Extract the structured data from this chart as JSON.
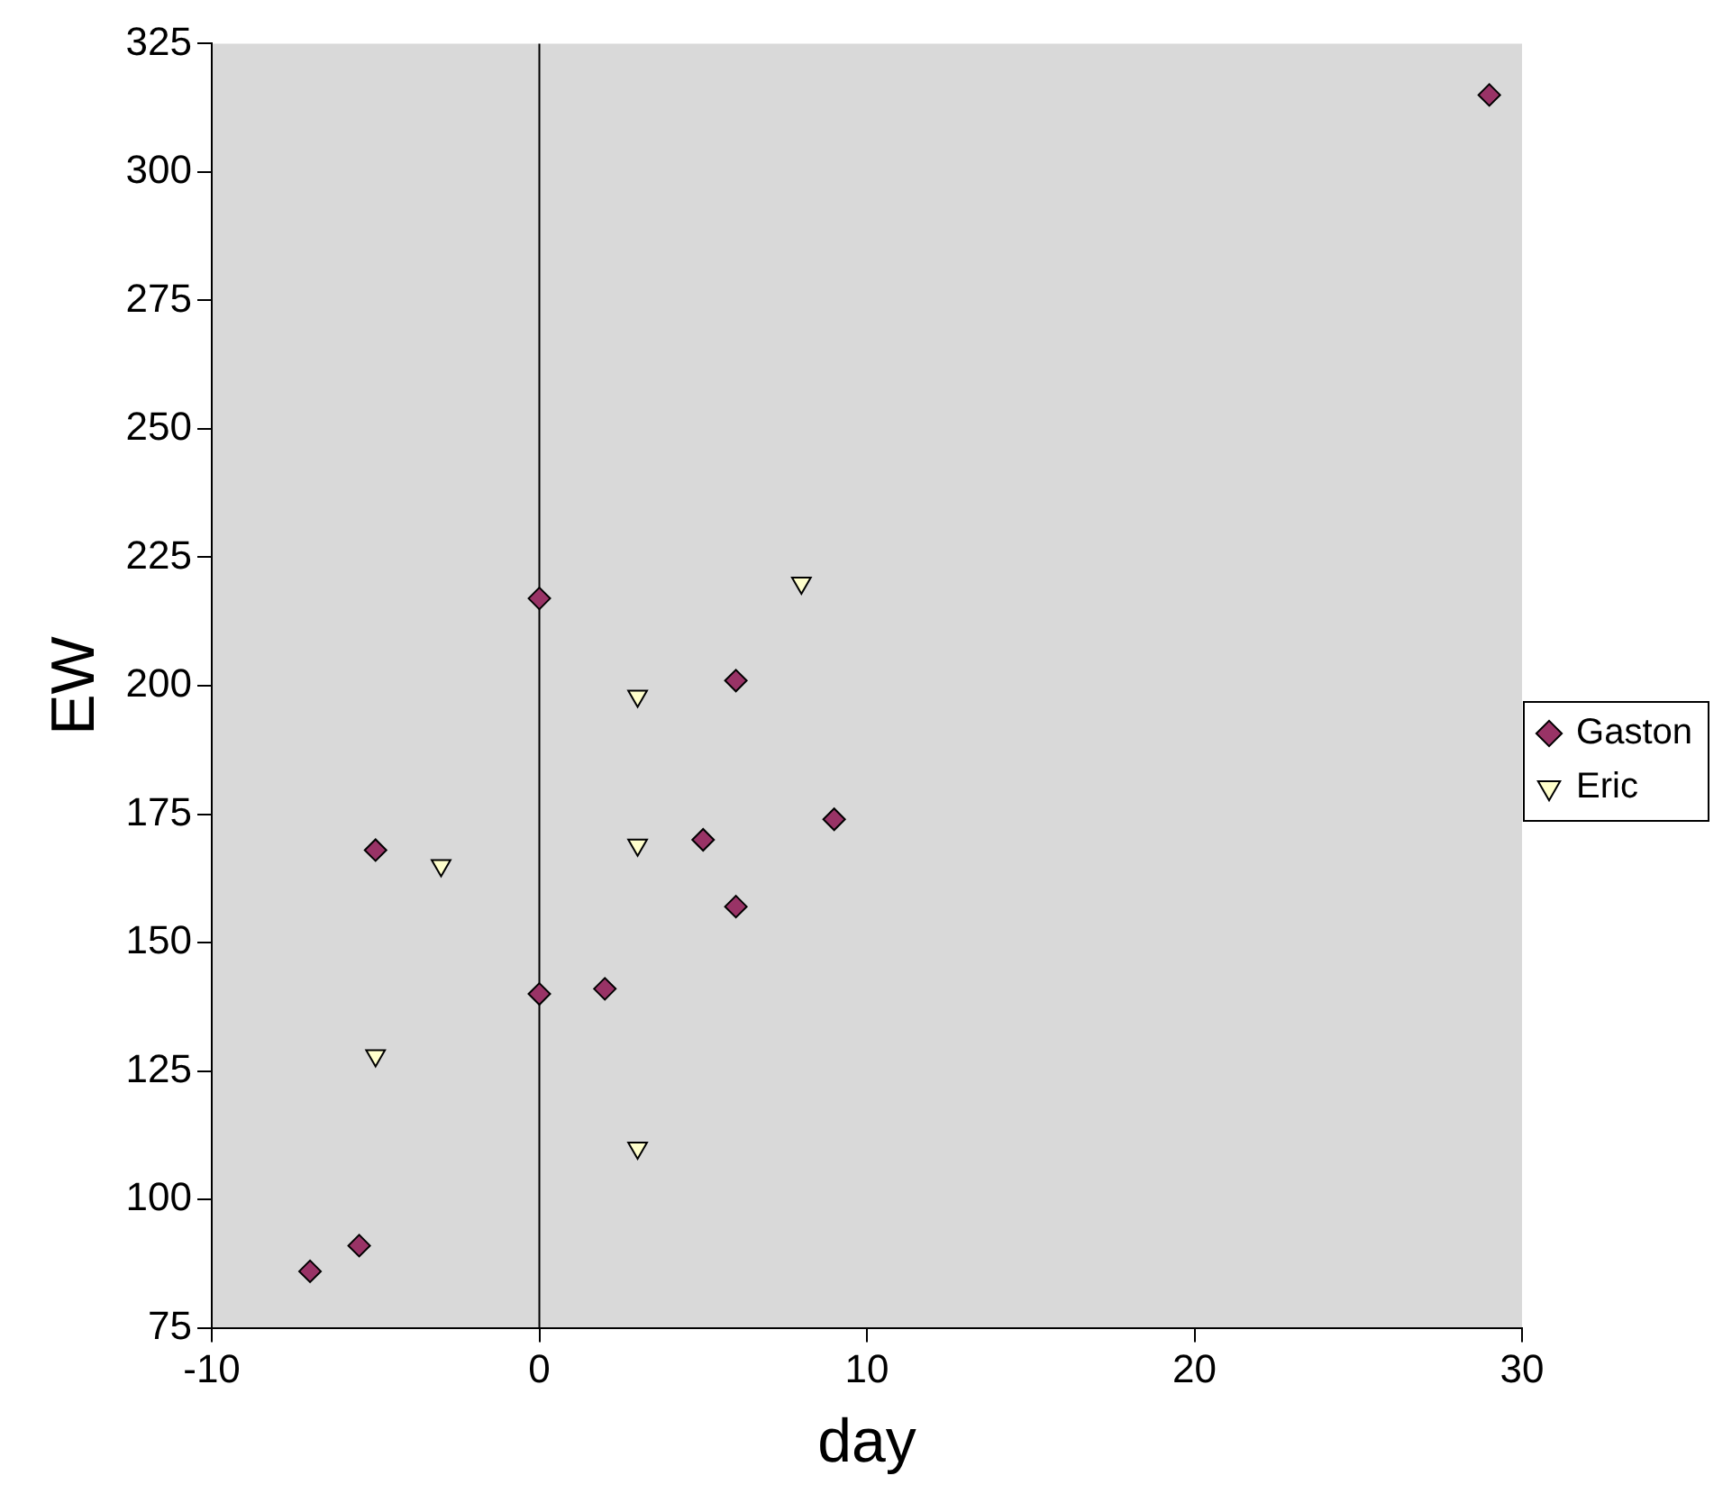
{
  "chart_data": {
    "type": "scatter",
    "xlabel": "day",
    "ylabel": "EW",
    "xlim": [
      -10,
      30
    ],
    "xticks": [
      -10,
      0,
      10,
      20,
      30
    ],
    "ylim": [
      75,
      325
    ],
    "yticks": [
      75,
      100,
      125,
      150,
      175,
      200,
      225,
      250,
      275,
      300,
      325
    ],
    "grid": false,
    "legend": "right",
    "ref_lines": [
      {
        "axis": "x",
        "value": 0,
        "color": "#000000"
      }
    ],
    "series": [
      {
        "name": "Gaston",
        "color": "#993366",
        "marker": "diamond",
        "x": [
          29,
          0,
          6,
          -5,
          5,
          9,
          6,
          2,
          0,
          -5.5,
          -7
        ],
        "values": [
          315,
          217,
          201,
          168,
          170,
          174,
          157,
          141,
          140,
          91,
          86
        ]
      },
      {
        "name": "Eric",
        "color": "#ffffcc",
        "marker": "triangle-down",
        "x": [
          8,
          3,
          -3,
          3,
          -5,
          3
        ],
        "values": [
          220,
          198,
          165,
          169,
          128,
          110
        ]
      }
    ]
  }
}
